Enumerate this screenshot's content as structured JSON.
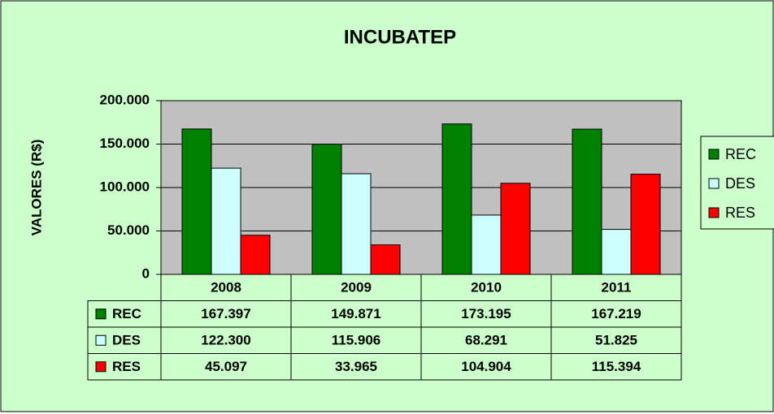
{
  "chart_data": {
    "type": "bar",
    "title": "INCUBATEP",
    "y_label": "VALORES (R$)",
    "categories": [
      "2008",
      "2009",
      "2010",
      "2011"
    ],
    "series": [
      {
        "name": "REC",
        "color": "#008000",
        "values": [
          167397,
          149871,
          173195,
          167219
        ],
        "value_labels": [
          "167.397",
          "149.871",
          "173.195",
          "167.219"
        ]
      },
      {
        "name": "DES",
        "color": "#ccffff",
        "values": [
          122300,
          115906,
          68291,
          51825
        ],
        "value_labels": [
          "122.300",
          "115.906",
          "68.291",
          "51.825"
        ]
      },
      {
        "name": "RES",
        "color": "#ff0000",
        "values": [
          45097,
          33965,
          104904,
          115394
        ],
        "value_labels": [
          "45.097",
          "33.965",
          "104.904",
          "115.394"
        ]
      }
    ],
    "ylim": [
      0,
      200000
    ],
    "yticks": [
      0,
      {
        "value": 50000,
        "label": "50.000"
      },
      {
        "value": 100000,
        "label": "100.000"
      },
      {
        "value": 150000,
        "label": "150.000"
      },
      {
        "value": 200000,
        "label": "200.000"
      }
    ],
    "grid": true,
    "legend": "right"
  }
}
